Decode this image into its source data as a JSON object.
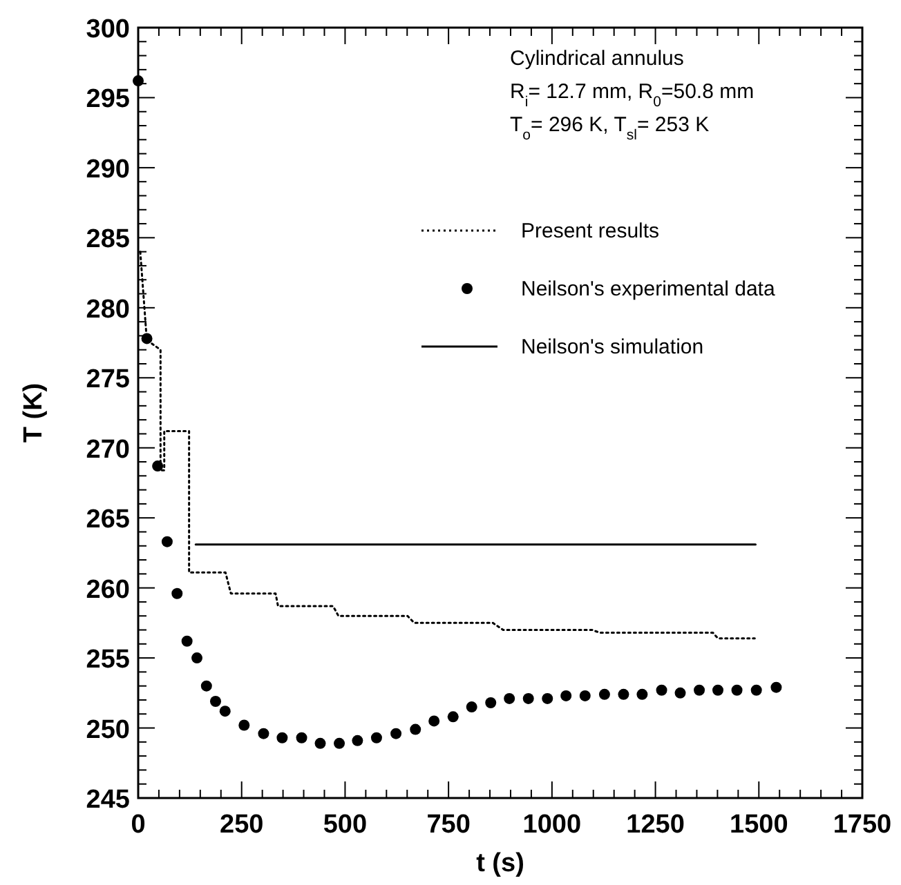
{
  "chart_data": {
    "type": "line",
    "xlabel": "t (s)",
    "ylabel": "T (K)",
    "annotations": [
      "Cylindrical annulus",
      "R$_{i}$= 12.7 mm, R$_{0}$=50.8 mm",
      "T$_{o}$= 296 K, T$_{sl}$= 253 K"
    ],
    "xlim": [
      0,
      1750
    ],
    "ylim": [
      245,
      300
    ],
    "xticks": [
      0,
      {
        "value": 50,
        "label": null
      },
      {
        "value": 100,
        "label": null
      },
      {
        "value": 150,
        "label": null
      },
      {
        "value": 200,
        "label": null
      },
      250,
      {
        "value": 300,
        "label": null
      },
      {
        "value": 350,
        "label": null
      },
      {
        "value": 400,
        "label": null
      },
      {
        "value": 450,
        "label": null
      },
      500,
      {
        "value": 550,
        "label": null
      },
      {
        "value": 600,
        "label": null
      },
      {
        "value": 650,
        "label": null
      },
      {
        "value": 700,
        "label": null
      },
      750,
      {
        "value": 800,
        "label": null
      },
      {
        "value": 850,
        "label": null
      },
      {
        "value": 900,
        "label": null
      },
      {
        "value": 950,
        "label": null
      },
      1000,
      {
        "value": 1050,
        "label": null
      },
      {
        "value": 1100,
        "label": null
      },
      {
        "value": 1150,
        "label": null
      },
      {
        "value": 1200,
        "label": null
      },
      1250,
      {
        "value": 1300,
        "label": null
      },
      {
        "value": 1350,
        "label": null
      },
      {
        "value": 1400,
        "label": null
      },
      {
        "value": 1450,
        "label": null
      },
      1500,
      {
        "value": 1550,
        "label": null
      },
      {
        "value": 1600,
        "label": null
      },
      {
        "value": 1650,
        "label": null
      },
      {
        "value": 1700,
        "label": null
      },
      1750
    ],
    "yticks": [
      245,
      {
        "value": 246,
        "label": null
      },
      {
        "value": 247,
        "label": null
      },
      {
        "value": 248,
        "label": null
      },
      {
        "value": 249,
        "label": null
      },
      250,
      {
        "value": 251,
        "label": null
      },
      {
        "value": 252,
        "label": null
      },
      {
        "value": 253,
        "label": null
      },
      {
        "value": 254,
        "label": null
      },
      255,
      {
        "value": 256,
        "label": null
      },
      {
        "value": 257,
        "label": null
      },
      {
        "value": 258,
        "label": null
      },
      {
        "value": 259,
        "label": null
      },
      260,
      {
        "value": 261,
        "label": null
      },
      {
        "value": 262,
        "label": null
      },
      {
        "value": 263,
        "label": null
      },
      {
        "value": 264,
        "label": null
      },
      265,
      {
        "value": 266,
        "label": null
      },
      {
        "value": 267,
        "label": null
      },
      {
        "value": 268,
        "label": null
      },
      {
        "value": 269,
        "label": null
      },
      270,
      {
        "value": 271,
        "label": null
      },
      {
        "value": 272,
        "label": null
      },
      {
        "value": 273,
        "label": null
      },
      {
        "value": 274,
        "label": null
      },
      275,
      {
        "value": 276,
        "label": null
      },
      {
        "value": 277,
        "label": null
      },
      {
        "value": 278,
        "label": null
      },
      {
        "value": 279,
        "label": null
      },
      280,
      {
        "value": 281,
        "label": null
      },
      {
        "value": 282,
        "label": null
      },
      {
        "value": 283,
        "label": null
      },
      {
        "value": 284,
        "label": null
      },
      285,
      {
        "value": 286,
        "label": null
      },
      {
        "value": 287,
        "label": null
      },
      {
        "value": 288,
        "label": null
      },
      {
        "value": 289,
        "label": null
      },
      290,
      {
        "value": 291,
        "label": null
      },
      {
        "value": 292,
        "label": null
      },
      {
        "value": 293,
        "label": null
      },
      {
        "value": 294,
        "label": null
      },
      295,
      {
        "value": 296,
        "label": null
      },
      {
        "value": 297,
        "label": null
      },
      {
        "value": 298,
        "label": null
      },
      {
        "value": 299,
        "label": null
      },
      300
    ],
    "legend": "top right",
    "series": [
      {
        "name": "Present results",
        "line_style": "dotted",
        "color": "#000000",
        "x": [
          5,
          10,
          15,
          20,
          30,
          54,
          54,
          63,
          63,
          123,
          123,
          211,
          224,
          332,
          338,
          471,
          484,
          651,
          667,
          857,
          882,
          1097,
          1116,
          1389,
          1401,
          1490
        ],
        "values": [
          284,
          282,
          280,
          278,
          277.5,
          277,
          268.4,
          268.4,
          271.2,
          271.2,
          261.1,
          261.1,
          259.6,
          259.6,
          258.7,
          258.7,
          258,
          258,
          257.5,
          257.5,
          257,
          257,
          256.8,
          256.8,
          256.4,
          256.4
        ]
      },
      {
        "name": "Neilson's experimental data",
        "type": "scatter",
        "marker": "circle",
        "color": "#000000",
        "x": [
          0,
          21,
          47,
          70,
          94,
          118,
          142,
          165,
          187,
          210,
          256,
          303,
          348,
          395,
          440,
          486,
          530,
          576,
          623,
          670,
          715,
          761,
          806,
          852,
          897,
          943,
          989,
          1034,
          1080,
          1127,
          1173,
          1218,
          1265,
          1310,
          1356,
          1401,
          1447,
          1494,
          1542
        ],
        "values": [
          296.2,
          277.8,
          268.7,
          263.3,
          259.6,
          256.2,
          255,
          253,
          251.9,
          251.2,
          250.2,
          249.6,
          249.3,
          249.3,
          248.9,
          248.9,
          249.1,
          249.3,
          249.6,
          249.9,
          250.5,
          250.8,
          251.5,
          251.8,
          252.1,
          252.1,
          252.1,
          252.3,
          252.3,
          252.4,
          252.4,
          252.4,
          252.7,
          252.5,
          252.7,
          252.7,
          252.7,
          252.7,
          252.9
        ]
      },
      {
        "name": "Neilson's simulation",
        "line_style": "solid",
        "color": "#000000",
        "x": [
          139,
          1492
        ],
        "values": [
          263.1,
          263.1
        ]
      }
    ]
  }
}
